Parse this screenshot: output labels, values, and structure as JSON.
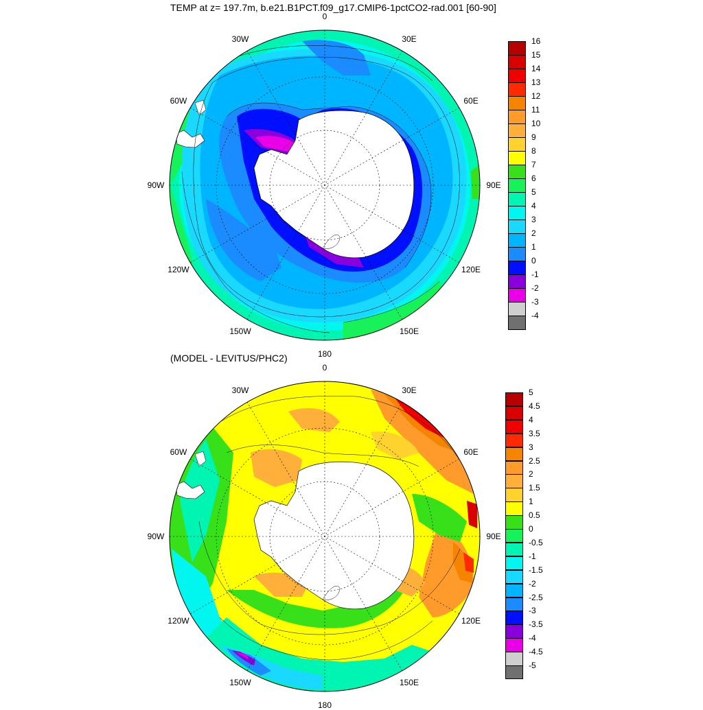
{
  "title": "TEMP at z= 197.7m, b.e21.B1PCT.f09_g17.CMIP6-1pctCO2-rad.001 [60-90]",
  "subtitle": "(MODEL - LEVITUS/PHC2)",
  "longitude_labels": [
    "0",
    "30E",
    "60E",
    "90E",
    "120E",
    "150E",
    "180",
    "150W",
    "120W",
    "90W",
    "60W",
    "30W"
  ],
  "top_panel": {
    "colorbar_labels": [
      "16",
      "15",
      "14",
      "13",
      "12",
      "11",
      "10",
      "9",
      "8",
      "7",
      "6",
      "5",
      "4",
      "3",
      "2",
      "1",
      "0",
      "-1",
      "-2",
      "-3",
      "-4"
    ],
    "colors": [
      "#b70000",
      "#d90000",
      "#f00000",
      "#ff2a00",
      "#f58500",
      "#ff9b2b",
      "#ffb03b",
      "#ffd22e",
      "#ffff00",
      "#38e01a",
      "#17f15a",
      "#00f4b2",
      "#00f6ee",
      "#1ad9ff",
      "#00b5ff",
      "#1a8cff",
      "#0010ff",
      "#8a00dd",
      "#ea00e6",
      "#cfcfcf",
      "#707070"
    ]
  },
  "bottom_panel": {
    "colorbar_labels": [
      "5",
      "4.5",
      "4",
      "3.5",
      "3",
      "2.5",
      "2",
      "1.5",
      "1",
      "0.5",
      "0",
      "-0.5",
      "-1",
      "-1.5",
      "-2",
      "-2.5",
      "-3",
      "-3.5",
      "-4",
      "-4.5",
      "-5"
    ],
    "colors": [
      "#b70000",
      "#d90000",
      "#f00000",
      "#ff2a00",
      "#f58500",
      "#ff9b2b",
      "#ffb03b",
      "#ffd22e",
      "#ffff00",
      "#38e01a",
      "#17f15a",
      "#00f4b2",
      "#00f6ee",
      "#1ad9ff",
      "#00b5ff",
      "#1a8cff",
      "#0010ff",
      "#8a00dd",
      "#ea00e6",
      "#cfcfcf",
      "#707070"
    ]
  }
}
